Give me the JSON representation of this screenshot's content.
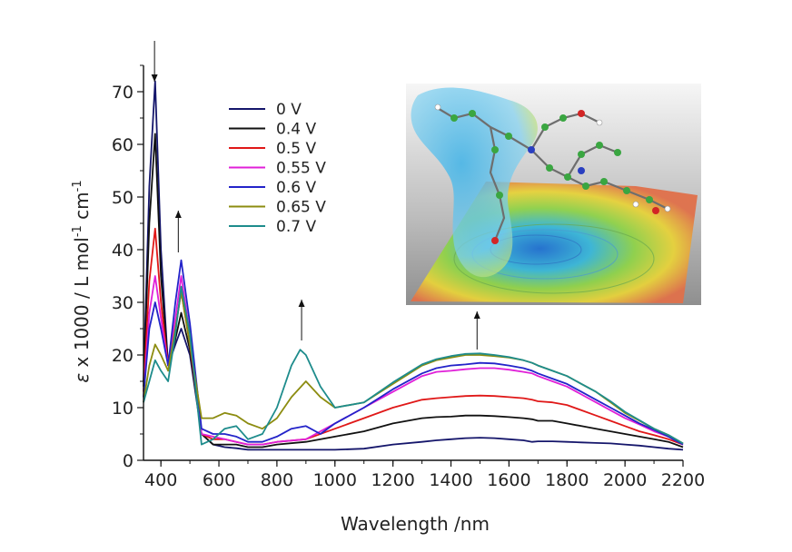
{
  "chart_data": {
    "type": "line",
    "title": "",
    "xlabel": "Wavelength /nm",
    "ylabel": {
      "epsilon": "ε",
      "main": " x 1000 / L mol",
      "exp1": "-1",
      "mid": " cm",
      "exp2": "-1"
    },
    "xlim": [
      340,
      2200
    ],
    "ylim": [
      0,
      75
    ],
    "x_ticks": [
      400,
      600,
      800,
      1000,
      1200,
      1400,
      1600,
      1800,
      2000,
      2200
    ],
    "y_ticks": [
      0,
      10,
      20,
      30,
      40,
      50,
      60,
      70
    ],
    "grid": false,
    "legend_position": "top-center",
    "arrows": [
      {
        "x": 378,
        "direction": "down"
      },
      {
        "x": 460,
        "direction": "up"
      },
      {
        "x": 885,
        "direction": "up"
      },
      {
        "x": 1490,
        "direction": "up"
      }
    ],
    "inset": "molecular-structure-with-electrostatic-surface",
    "series": [
      {
        "name": "0 V",
        "color": "#15166b",
        "x": [
          340,
          360,
          380,
          400,
          425,
          450,
          470,
          500,
          540,
          580,
          620,
          660,
          700,
          750,
          800,
          900,
          1000,
          1100,
          1200,
          1300,
          1350,
          1400,
          1450,
          1500,
          1550,
          1600,
          1650,
          1680,
          1700,
          1750,
          1800,
          1850,
          1900,
          1950,
          2000,
          2050,
          2100,
          2150,
          2200
        ],
        "y": [
          15,
          52,
          72,
          40,
          18,
          22,
          25,
          20,
          5,
          3,
          2.5,
          2.3,
          2,
          2,
          2,
          2,
          2,
          2.2,
          3,
          3.5,
          3.8,
          4,
          4.2,
          4.3,
          4.2,
          4,
          3.8,
          3.5,
          3.6,
          3.6,
          3.5,
          3.4,
          3.3,
          3.2,
          3,
          2.8,
          2.5,
          2.2,
          2
        ]
      },
      {
        "name": "0.4 V",
        "color": "#111111",
        "x": [
          340,
          360,
          380,
          400,
          425,
          450,
          470,
          500,
          540,
          580,
          620,
          660,
          700,
          750,
          800,
          900,
          1000,
          1100,
          1200,
          1300,
          1350,
          1400,
          1450,
          1500,
          1550,
          1600,
          1650,
          1680,
          1700,
          1750,
          1800,
          1850,
          1900,
          1950,
          2000,
          2050,
          2100,
          2150,
          2200
        ],
        "y": [
          14,
          45,
          62,
          35,
          18,
          23,
          28,
          21,
          5,
          3,
          3,
          3,
          2.5,
          2.5,
          3,
          3.5,
          4.5,
          5.5,
          7,
          8,
          8.2,
          8.3,
          8.5,
          8.5,
          8.4,
          8.2,
          8,
          7.8,
          7.5,
          7.5,
          7,
          6.5,
          6,
          5.5,
          5,
          4.5,
          4,
          3.5,
          2.5
        ]
      },
      {
        "name": "0.5 V",
        "color": "#e01818",
        "x": [
          340,
          360,
          380,
          400,
          425,
          450,
          470,
          500,
          540,
          580,
          620,
          660,
          700,
          750,
          800,
          900,
          1000,
          1100,
          1200,
          1300,
          1350,
          1400,
          1450,
          1500,
          1550,
          1600,
          1650,
          1680,
          1700,
          1750,
          1800,
          1850,
          1900,
          1950,
          2000,
          2050,
          2100,
          2150,
          2200
        ],
        "y": [
          13,
          34,
          44,
          30,
          18,
          25,
          32,
          22,
          5,
          4,
          4,
          3.5,
          3,
          3,
          3.5,
          4,
          6,
          8,
          10,
          11.5,
          11.8,
          12,
          12.2,
          12.3,
          12.2,
          12,
          11.8,
          11.5,
          11.2,
          11,
          10.5,
          9.5,
          8.5,
          7.5,
          6.5,
          5.5,
          4.8,
          4,
          3
        ]
      },
      {
        "name": "0.55 V",
        "color": "#e020d8",
        "x": [
          340,
          360,
          380,
          400,
          425,
          450,
          470,
          500,
          540,
          580,
          620,
          660,
          700,
          750,
          800,
          900,
          1000,
          1100,
          1200,
          1300,
          1350,
          1400,
          1450,
          1500,
          1550,
          1600,
          1650,
          1680,
          1700,
          1750,
          1800,
          1850,
          1900,
          1950,
          2000,
          2050,
          2100,
          2150,
          2200
        ],
        "y": [
          12,
          28,
          35,
          27,
          18,
          27,
          35,
          24,
          5,
          4.5,
          4,
          3.5,
          3,
          3,
          3.5,
          4,
          7,
          10,
          13,
          16,
          16.8,
          17,
          17.3,
          17.5,
          17.5,
          17.2,
          16.8,
          16.5,
          16,
          15,
          14,
          12.5,
          11,
          9.5,
          8,
          6.8,
          5.5,
          4.5,
          3
        ]
      },
      {
        "name": "0.6 V",
        "color": "#2323c9",
        "x": [
          340,
          360,
          380,
          400,
          425,
          450,
          470,
          500,
          540,
          580,
          620,
          660,
          700,
          750,
          800,
          850,
          900,
          950,
          1000,
          1100,
          1200,
          1300,
          1350,
          1400,
          1450,
          1500,
          1550,
          1600,
          1650,
          1680,
          1700,
          1750,
          1800,
          1850,
          1900,
          1950,
          2000,
          2050,
          2100,
          2150,
          2200
        ],
        "y": [
          12,
          25,
          30,
          25,
          18,
          30,
          38,
          26,
          6,
          5,
          5,
          4.5,
          3.5,
          3.5,
          4.5,
          6,
          6.5,
          5,
          7,
          10,
          13.5,
          16.5,
          17.5,
          18,
          18.2,
          18.5,
          18.4,
          18,
          17.5,
          17,
          16.5,
          15.5,
          14.5,
          13,
          11.5,
          10,
          8.5,
          7,
          5.8,
          4.5,
          3
        ]
      },
      {
        "name": "0.65 V",
        "color": "#8c8c10",
        "x": [
          340,
          360,
          380,
          400,
          425,
          450,
          470,
          500,
          540,
          580,
          620,
          660,
          700,
          750,
          800,
          850,
          900,
          950,
          1000,
          1100,
          1200,
          1300,
          1350,
          1400,
          1450,
          1500,
          1550,
          1600,
          1650,
          1680,
          1700,
          1750,
          1800,
          1850,
          1900,
          1950,
          2000,
          2050,
          2100,
          2150,
          2200
        ],
        "y": [
          11,
          18,
          22,
          20,
          17,
          25,
          32,
          22,
          8,
          8,
          9,
          8.5,
          7,
          6,
          8,
          12,
          15,
          12,
          10,
          11,
          14.5,
          18,
          19,
          19.5,
          20,
          20,
          19.8,
          19.5,
          19,
          18.5,
          18,
          17,
          16,
          14.5,
          13,
          11,
          9,
          7.5,
          6,
          4.8,
          3.2
        ]
      },
      {
        "name": "0.7 V",
        "color": "#1e8c8c",
        "x": [
          340,
          360,
          380,
          400,
          425,
          450,
          470,
          500,
          540,
          580,
          620,
          660,
          700,
          750,
          800,
          850,
          880,
          900,
          950,
          1000,
          1100,
          1200,
          1300,
          1350,
          1400,
          1450,
          1500,
          1550,
          1600,
          1650,
          1680,
          1700,
          1750,
          1800,
          1850,
          1900,
          1950,
          2000,
          2050,
          2100,
          2150,
          2200
        ],
        "y": [
          11,
          15,
          19,
          17,
          15,
          24,
          33,
          24,
          3,
          4,
          6,
          6.5,
          4,
          5,
          10,
          18,
          21,
          20,
          14,
          10,
          11,
          14.8,
          18.2,
          19.2,
          19.8,
          20.2,
          20.3,
          20,
          19.6,
          19,
          18.5,
          18,
          17,
          16,
          14.5,
          13,
          11.2,
          9.2,
          7.6,
          6,
          4.8,
          3.2
        ]
      }
    ]
  }
}
